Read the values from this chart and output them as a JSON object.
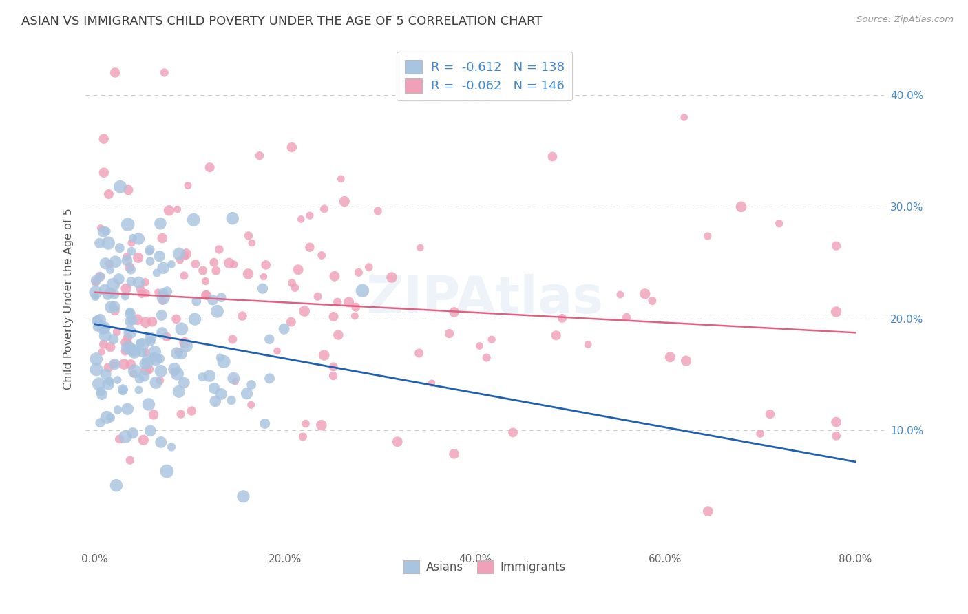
{
  "title": "ASIAN VS IMMIGRANTS CHILD POVERTY UNDER THE AGE OF 5 CORRELATION CHART",
  "source": "Source: ZipAtlas.com",
  "ylabel": "Child Poverty Under the Age of 5",
  "xlabel_ticks": [
    "0.0%",
    "20.0%",
    "40.0%",
    "60.0%",
    "80.0%"
  ],
  "xlabel_vals": [
    0.0,
    0.2,
    0.4,
    0.6,
    0.8
  ],
  "ytick_labels": [
    "10.0%",
    "20.0%",
    "30.0%",
    "40.0%"
  ],
  "ytick_vals": [
    0.1,
    0.2,
    0.3,
    0.4
  ],
  "xlim": [
    -0.01,
    0.83
  ],
  "ylim": [
    -0.005,
    0.44
  ],
  "asian_R": -0.612,
  "asian_N": 138,
  "immigrant_R": -0.062,
  "immigrant_N": 146,
  "asian_color": "#a8c4e0",
  "asian_line_color": "#2060b0",
  "immigrant_color": "#f0a0b8",
  "immigrant_line_color": "#e06080",
  "watermark": "ZIPAtlas",
  "legend_label_asian": "Asians",
  "legend_label_immigrant": "Immigrants",
  "background_color": "#ffffff",
  "grid_color": "#cccccc",
  "title_color": "#404040",
  "axis_label_color": "#4488cc",
  "legend_text_color": "#4488cc"
}
